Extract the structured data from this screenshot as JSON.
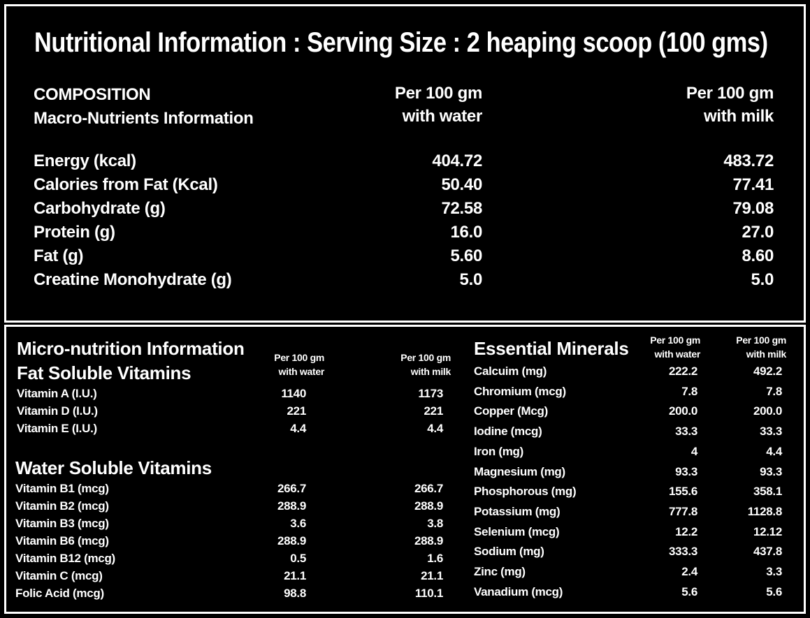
{
  "top": {
    "title": "Nutritional Information : Serving Size : 2 heaping scoop (100 gms)",
    "composition": "COMPOSITION",
    "macro_info": "Macro-Nutrients Information",
    "col_water_1": "Per 100 gm",
    "col_water_2": "with water",
    "col_milk_1": "Per 100 gm",
    "col_milk_2": "with milk",
    "rows": [
      {
        "label": "Energy (kcal)",
        "water": "404.72",
        "milk": "483.72"
      },
      {
        "label": "Calories from Fat (Kcal)",
        "water": "50.40",
        "milk": "77.41"
      },
      {
        "label": "Carbohydrate  (g)",
        "water": "72.58",
        "milk": "79.08"
      },
      {
        "label": "Protein (g)",
        "water": "16.0",
        "milk": "27.0"
      },
      {
        "label": "Fat (g)",
        "water": "5.60",
        "milk": "8.60"
      },
      {
        "label": "Creatine Monohydrate (g)",
        "water": "5.0",
        "milk": "5.0"
      }
    ]
  },
  "micro": {
    "title": "Micro-nutrition Information",
    "fat_soluble": "Fat Soluble Vitamins",
    "col_water_1": "Per 100 gm",
    "col_water_2": "with water",
    "col_milk_1": "Per 100 gm",
    "col_milk_2": "with milk",
    "fat_rows": [
      {
        "label": "Vitamin A (I.U.)",
        "water": "1140",
        "milk": "1173"
      },
      {
        "label": "Vitamin D (I.U.)",
        "water": "221",
        "milk": "221"
      },
      {
        "label": "Vitamin E (I.U.)",
        "water": "4.4",
        "milk": "4.4"
      }
    ],
    "water_soluble": "Water Soluble Vitamins",
    "water_rows": [
      {
        "label": "Vitamin B1 (mcg)",
        "water": "266.7",
        "milk": "266.7"
      },
      {
        "label": "Vitamin B2 (mcg)",
        "water": "288.9",
        "milk": "288.9"
      },
      {
        "label": "Vitamin B3 (mcg)",
        "water": "3.6",
        "milk": "3.8"
      },
      {
        "label": "Vitamin B6 (mcg)",
        "water": "288.9",
        "milk": "288.9"
      },
      {
        "label": "Vitamin B12 (mcg)",
        "water": "0.5",
        "milk": "1.6"
      },
      {
        "label": "Vitamin C (mcg)",
        "water": "21.1",
        "milk": "21.1"
      },
      {
        "label": "Folic Acid (mcg)",
        "water": "98.8",
        "milk": "110.1"
      }
    ]
  },
  "minerals": {
    "title": "Essential Minerals",
    "col_water_1": "Per 100 gm",
    "col_water_2": "with water",
    "col_milk_1": "Per 100 gm",
    "col_milk_2": "with milk",
    "rows": [
      {
        "label": "Calcuim (mg)",
        "water": "222.2",
        "milk": "492.2"
      },
      {
        "label": "Chromium (mcg)",
        "water": "7.8",
        "milk": "7.8"
      },
      {
        "label": "Copper (Mcg)",
        "water": "200.0",
        "milk": "200.0"
      },
      {
        "label": "Iodine (mcg)",
        "water": "33.3",
        "milk": "33.3"
      },
      {
        "label": "Iron (mg)",
        "water": "4",
        "milk": "4.4"
      },
      {
        "label": "Magnesium (mg)",
        "water": "93.3",
        "milk": "93.3"
      },
      {
        "label": "Phosphorous (mg)",
        "water": "155.6",
        "milk": "358.1"
      },
      {
        "label": "Potassium (mg)",
        "water": "777.8",
        "milk": "1128.8"
      },
      {
        "label": "Selenium (mcg)",
        "water": "12.2",
        "milk": "12.12"
      },
      {
        "label": "Sodium (mg)",
        "water": "333.3",
        "milk": "437.8"
      },
      {
        "label": "Zinc (mg)",
        "water": "2.4",
        "milk": "3.3"
      },
      {
        "label": "Vanadium (mcg)",
        "water": "5.6",
        "milk": "5.6"
      }
    ]
  }
}
